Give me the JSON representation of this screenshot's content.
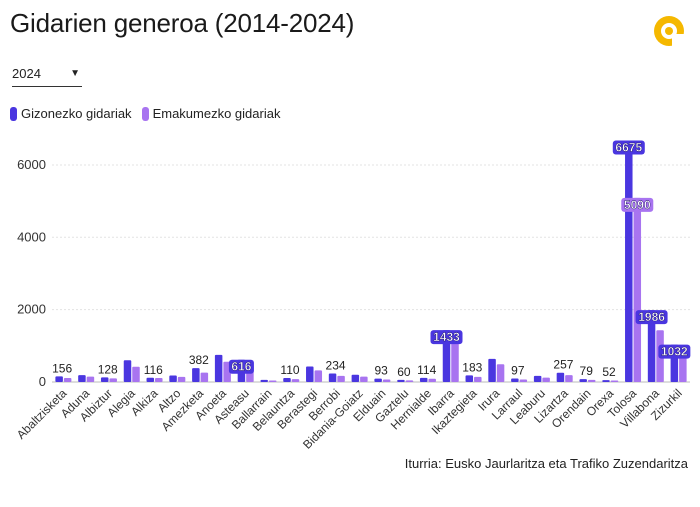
{
  "title": "Gidarien generoa (2014-2024)",
  "logo": {
    "icon": "brand-logo-icon",
    "color": "#f5b800"
  },
  "year_select": {
    "value": "2024",
    "caret": "▼"
  },
  "legend": [
    {
      "label": "Gizonezko gidariak",
      "color": "#4a36e0"
    },
    {
      "label": "Emakumezko gidariak",
      "color": "#a874f0"
    }
  ],
  "source": "Iturria: Eusko Jaurlaritza eta Trafiko Zuzendaritza",
  "chart_data": {
    "type": "bar",
    "categories": [
      "Abaltzisketa",
      "Aduna",
      "Albiztur",
      "Alegia",
      "Alkiza",
      "Altzo",
      "Amezketa",
      "Anoeta",
      "Asteasu",
      "Ballarrain",
      "Belauntza",
      "Berastegi",
      "Berrobi",
      "Bidania-Goiatz",
      "Elduain",
      "Gaztelu",
      "Hernialde",
      "Ibarra",
      "Ikaztegieta",
      "Irura",
      "Larraul",
      "Leaburu",
      "Lizartza",
      "Orendain",
      "Orexa",
      "Tolosa",
      "Villabona",
      "Zizurkil"
    ],
    "series": [
      {
        "name": "Gizonezko gidariak",
        "color": "#4a36e0",
        "values": [
          156,
          190,
          128,
          600,
          116,
          180,
          382,
          750,
          616,
          60,
          110,
          430,
          234,
          200,
          93,
          60,
          114,
          1433,
          183,
          640,
          97,
          170,
          257,
          79,
          52,
          6675,
          1986,
          1032
        ]
      },
      {
        "name": "Emakumezko gidariak",
        "color": "#a874f0",
        "values": [
          110,
          150,
          100,
          420,
          110,
          140,
          260,
          560,
          460,
          40,
          80,
          320,
          170,
          150,
          70,
          45,
          90,
          1330,
          140,
          490,
          70,
          120,
          190,
          60,
          40,
          5090,
          1430,
          760
        ]
      }
    ],
    "data_labels": [
      {
        "category": "Abaltzisketa",
        "series": 0,
        "text": "156"
      },
      {
        "category": "Albiztur",
        "series": 0,
        "text": "128"
      },
      {
        "category": "Alkiza",
        "series": 0,
        "text": "116"
      },
      {
        "category": "Amezketa",
        "series": 0,
        "text": "382"
      },
      {
        "category": "Asteasu",
        "series": 0,
        "text": "616",
        "inside": true
      },
      {
        "category": "Belauntza",
        "series": 0,
        "text": "110"
      },
      {
        "category": "Berrobi",
        "series": 0,
        "text": "234"
      },
      {
        "category": "Elduain",
        "series": 0,
        "text": "93"
      },
      {
        "category": "Gaztelu",
        "series": 0,
        "text": "60"
      },
      {
        "category": "Hernialde",
        "series": 0,
        "text": "114"
      },
      {
        "category": "Ibarra",
        "series": 0,
        "text": "1433",
        "inside": true
      },
      {
        "category": "Ikaztegieta",
        "series": 0,
        "text": "183"
      },
      {
        "category": "Larraul",
        "series": 0,
        "text": "97"
      },
      {
        "category": "Lizartza",
        "series": 0,
        "text": "257"
      },
      {
        "category": "Orendain",
        "series": 0,
        "text": "79"
      },
      {
        "category": "Orexa",
        "series": 0,
        "text": "52"
      },
      {
        "category": "Tolosa",
        "series": 0,
        "text": "6675",
        "inside": true
      },
      {
        "category": "Tolosa",
        "series": 1,
        "text": "5090",
        "inside": true
      },
      {
        "category": "Villabona",
        "series": 0,
        "text": "1986",
        "inside": true
      },
      {
        "category": "Zizurkil",
        "series": 0,
        "text": "1032",
        "inside": true
      }
    ],
    "yticks": [
      0,
      2000,
      4000,
      6000
    ],
    "ylim": [
      0,
      6800
    ],
    "grid": true,
    "legend_position": "top-left",
    "xlabel": "",
    "ylabel": ""
  }
}
